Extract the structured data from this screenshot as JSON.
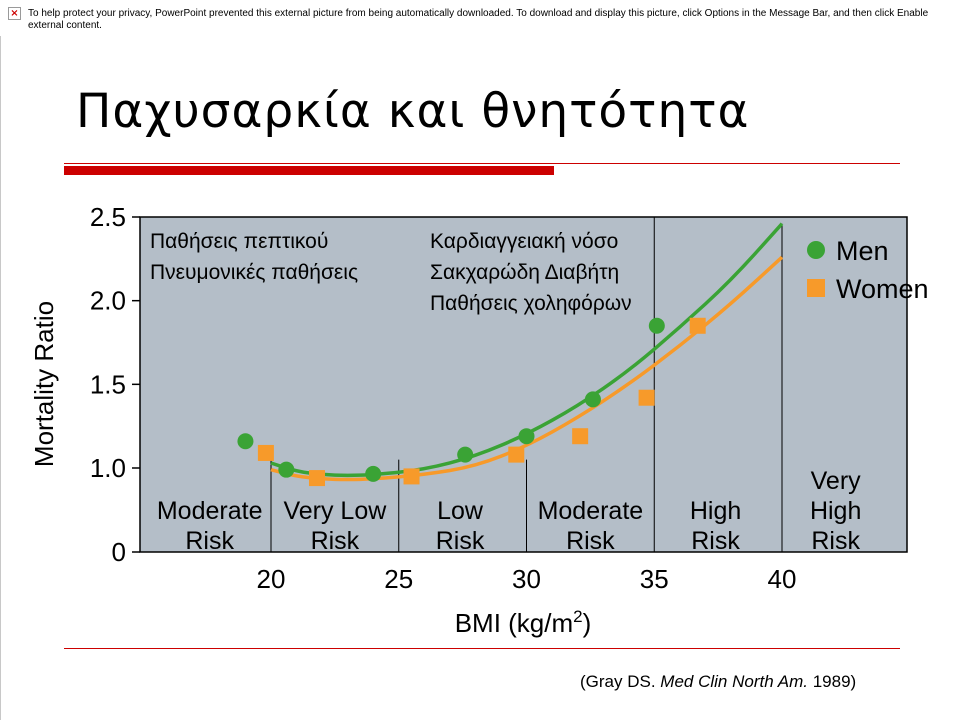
{
  "notice": {
    "text": "To help protect your privacy, PowerPoint prevented this external picture from being automatically downloaded. To download and display this picture, click Options in the Message Bar, and then click Enable external content.",
    "icon": "broken-image-icon"
  },
  "slide": {
    "title": "Παχυσαρκία και θνητότητα",
    "accent_color": "#cc0000"
  },
  "citation": {
    "open": "(Gray DS. ",
    "journal": "Med Clin North Am.",
    "close": " 1989)"
  },
  "chart_data": {
    "type": "scatter",
    "xlabel": "BMI (kg/m",
    "xlabel_superscript": "2",
    "xlabel_close": ")",
    "ylabel": "Mortality Ratio",
    "xlim": [
      15,
      44
    ],
    "ylim": [
      0,
      2.5
    ],
    "x_ticks": [
      20,
      25,
      30,
      35,
      40
    ],
    "x_tick_labels": [
      "20",
      "25",
      "30",
      "35",
      "40"
    ],
    "y_ticks": [
      0,
      1.0,
      1.5,
      2.0,
      2.5
    ],
    "y_tick_labels": [
      "0",
      "1.0",
      "1.5",
      "2.0",
      "2.5"
    ],
    "grid": false,
    "plot_background": "#b4bec8",
    "legend_position": "top-right",
    "series": [
      {
        "name": "Men",
        "marker": "circle",
        "color": "#3aa335",
        "x": [
          19.0,
          20.6,
          24.0,
          27.6,
          30.0,
          32.6,
          35.1
        ],
        "y": [
          1.16,
          0.98,
          0.93,
          1.08,
          1.19,
          1.41,
          1.85
        ],
        "fit_x": [
          20.0,
          21.0,
          22.0,
          23.0,
          24.0,
          26.0,
          28.0,
          30.0,
          32.0,
          34.0,
          36.0,
          38.0,
          40.0
        ],
        "fit_y": [
          1.03,
          0.96,
          0.92,
          0.91,
          0.92,
          0.98,
          1.07,
          1.2,
          1.37,
          1.58,
          1.84,
          2.12,
          2.46
        ]
      },
      {
        "name": "Women",
        "marker": "square",
        "color": "#f79a2a",
        "x": [
          19.8,
          21.8,
          25.5,
          29.6,
          32.1,
          34.7,
          36.7
        ],
        "y": [
          1.09,
          0.88,
          0.9,
          1.08,
          1.19,
          1.42,
          1.85
        ],
        "fit_x": [
          20.0,
          21.0,
          22.0,
          23.0,
          24.0,
          26.0,
          28.0,
          30.0,
          32.0,
          34.0,
          36.0,
          38.0,
          40.0
        ],
        "fit_y": [
          0.98,
          0.9,
          0.87,
          0.86,
          0.87,
          0.92,
          1.01,
          1.13,
          1.3,
          1.5,
          1.73,
          1.98,
          2.26
        ]
      }
    ],
    "risk_dividers": [
      20,
      25,
      30,
      35,
      40
    ],
    "risk_zones": [
      {
        "lines": [
          "Moderate",
          "Risk"
        ],
        "center": 17.6
      },
      {
        "lines": [
          "Very Low",
          "Risk"
        ],
        "center": 22.5
      },
      {
        "lines": [
          "Low",
          "Risk"
        ],
        "center": 27.4
      },
      {
        "lines": [
          "Moderate",
          "Risk"
        ],
        "center": 32.5
      },
      {
        "lines": [
          "High",
          "Risk"
        ],
        "center": 37.4
      },
      {
        "lines": [
          "Very",
          "High",
          "Risk"
        ],
        "center": 42.1
      }
    ],
    "annotations": [
      {
        "lines": [
          "Παθήσεις πεπτικού",
          "Πνευμονικές παθήσεις"
        ]
      },
      {
        "lines": [
          "Καρδιαγγειακή νόσο",
          "Σακχαρώδη Διαβήτη",
          "Παθήσεις χοληφόρων"
        ]
      }
    ]
  }
}
